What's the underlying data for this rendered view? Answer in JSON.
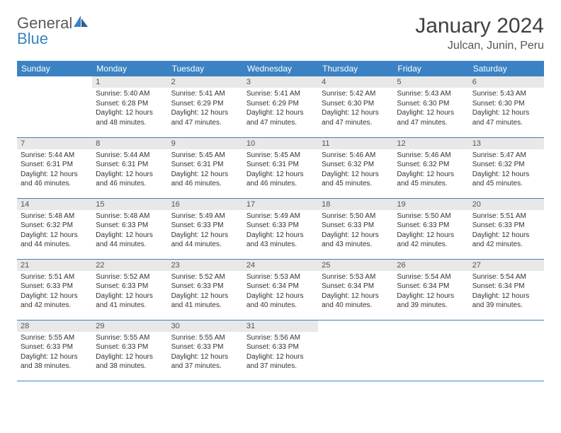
{
  "logo": {
    "general": "General",
    "blue": "Blue"
  },
  "title": "January 2024",
  "location": "Julcan, Junin, Peru",
  "colors": {
    "header_bg": "#3b82c4",
    "header_text": "#ffffff",
    "daynum_bg": "#e8e8e8",
    "border": "#3b82c4",
    "body_text": "#333333",
    "logo_gray": "#5a5a5a",
    "logo_blue": "#3b82c4"
  },
  "weekdays": [
    "Sunday",
    "Monday",
    "Tuesday",
    "Wednesday",
    "Thursday",
    "Friday",
    "Saturday"
  ],
  "weeks": [
    [
      null,
      {
        "n": "1",
        "sr": "Sunrise: 5:40 AM",
        "ss": "Sunset: 6:28 PM",
        "d1": "Daylight: 12 hours",
        "d2": "and 48 minutes."
      },
      {
        "n": "2",
        "sr": "Sunrise: 5:41 AM",
        "ss": "Sunset: 6:29 PM",
        "d1": "Daylight: 12 hours",
        "d2": "and 47 minutes."
      },
      {
        "n": "3",
        "sr": "Sunrise: 5:41 AM",
        "ss": "Sunset: 6:29 PM",
        "d1": "Daylight: 12 hours",
        "d2": "and 47 minutes."
      },
      {
        "n": "4",
        "sr": "Sunrise: 5:42 AM",
        "ss": "Sunset: 6:30 PM",
        "d1": "Daylight: 12 hours",
        "d2": "and 47 minutes."
      },
      {
        "n": "5",
        "sr": "Sunrise: 5:43 AM",
        "ss": "Sunset: 6:30 PM",
        "d1": "Daylight: 12 hours",
        "d2": "and 47 minutes."
      },
      {
        "n": "6",
        "sr": "Sunrise: 5:43 AM",
        "ss": "Sunset: 6:30 PM",
        "d1": "Daylight: 12 hours",
        "d2": "and 47 minutes."
      }
    ],
    [
      {
        "n": "7",
        "sr": "Sunrise: 5:44 AM",
        "ss": "Sunset: 6:31 PM",
        "d1": "Daylight: 12 hours",
        "d2": "and 46 minutes."
      },
      {
        "n": "8",
        "sr": "Sunrise: 5:44 AM",
        "ss": "Sunset: 6:31 PM",
        "d1": "Daylight: 12 hours",
        "d2": "and 46 minutes."
      },
      {
        "n": "9",
        "sr": "Sunrise: 5:45 AM",
        "ss": "Sunset: 6:31 PM",
        "d1": "Daylight: 12 hours",
        "d2": "and 46 minutes."
      },
      {
        "n": "10",
        "sr": "Sunrise: 5:45 AM",
        "ss": "Sunset: 6:31 PM",
        "d1": "Daylight: 12 hours",
        "d2": "and 46 minutes."
      },
      {
        "n": "11",
        "sr": "Sunrise: 5:46 AM",
        "ss": "Sunset: 6:32 PM",
        "d1": "Daylight: 12 hours",
        "d2": "and 45 minutes."
      },
      {
        "n": "12",
        "sr": "Sunrise: 5:46 AM",
        "ss": "Sunset: 6:32 PM",
        "d1": "Daylight: 12 hours",
        "d2": "and 45 minutes."
      },
      {
        "n": "13",
        "sr": "Sunrise: 5:47 AM",
        "ss": "Sunset: 6:32 PM",
        "d1": "Daylight: 12 hours",
        "d2": "and 45 minutes."
      }
    ],
    [
      {
        "n": "14",
        "sr": "Sunrise: 5:48 AM",
        "ss": "Sunset: 6:32 PM",
        "d1": "Daylight: 12 hours",
        "d2": "and 44 minutes."
      },
      {
        "n": "15",
        "sr": "Sunrise: 5:48 AM",
        "ss": "Sunset: 6:33 PM",
        "d1": "Daylight: 12 hours",
        "d2": "and 44 minutes."
      },
      {
        "n": "16",
        "sr": "Sunrise: 5:49 AM",
        "ss": "Sunset: 6:33 PM",
        "d1": "Daylight: 12 hours",
        "d2": "and 44 minutes."
      },
      {
        "n": "17",
        "sr": "Sunrise: 5:49 AM",
        "ss": "Sunset: 6:33 PM",
        "d1": "Daylight: 12 hours",
        "d2": "and 43 minutes."
      },
      {
        "n": "18",
        "sr": "Sunrise: 5:50 AM",
        "ss": "Sunset: 6:33 PM",
        "d1": "Daylight: 12 hours",
        "d2": "and 43 minutes."
      },
      {
        "n": "19",
        "sr": "Sunrise: 5:50 AM",
        "ss": "Sunset: 6:33 PM",
        "d1": "Daylight: 12 hours",
        "d2": "and 42 minutes."
      },
      {
        "n": "20",
        "sr": "Sunrise: 5:51 AM",
        "ss": "Sunset: 6:33 PM",
        "d1": "Daylight: 12 hours",
        "d2": "and 42 minutes."
      }
    ],
    [
      {
        "n": "21",
        "sr": "Sunrise: 5:51 AM",
        "ss": "Sunset: 6:33 PM",
        "d1": "Daylight: 12 hours",
        "d2": "and 42 minutes."
      },
      {
        "n": "22",
        "sr": "Sunrise: 5:52 AM",
        "ss": "Sunset: 6:33 PM",
        "d1": "Daylight: 12 hours",
        "d2": "and 41 minutes."
      },
      {
        "n": "23",
        "sr": "Sunrise: 5:52 AM",
        "ss": "Sunset: 6:33 PM",
        "d1": "Daylight: 12 hours",
        "d2": "and 41 minutes."
      },
      {
        "n": "24",
        "sr": "Sunrise: 5:53 AM",
        "ss": "Sunset: 6:34 PM",
        "d1": "Daylight: 12 hours",
        "d2": "and 40 minutes."
      },
      {
        "n": "25",
        "sr": "Sunrise: 5:53 AM",
        "ss": "Sunset: 6:34 PM",
        "d1": "Daylight: 12 hours",
        "d2": "and 40 minutes."
      },
      {
        "n": "26",
        "sr": "Sunrise: 5:54 AM",
        "ss": "Sunset: 6:34 PM",
        "d1": "Daylight: 12 hours",
        "d2": "and 39 minutes."
      },
      {
        "n": "27",
        "sr": "Sunrise: 5:54 AM",
        "ss": "Sunset: 6:34 PM",
        "d1": "Daylight: 12 hours",
        "d2": "and 39 minutes."
      }
    ],
    [
      {
        "n": "28",
        "sr": "Sunrise: 5:55 AM",
        "ss": "Sunset: 6:33 PM",
        "d1": "Daylight: 12 hours",
        "d2": "and 38 minutes."
      },
      {
        "n": "29",
        "sr": "Sunrise: 5:55 AM",
        "ss": "Sunset: 6:33 PM",
        "d1": "Daylight: 12 hours",
        "d2": "and 38 minutes."
      },
      {
        "n": "30",
        "sr": "Sunrise: 5:55 AM",
        "ss": "Sunset: 6:33 PM",
        "d1": "Daylight: 12 hours",
        "d2": "and 37 minutes."
      },
      {
        "n": "31",
        "sr": "Sunrise: 5:56 AM",
        "ss": "Sunset: 6:33 PM",
        "d1": "Daylight: 12 hours",
        "d2": "and 37 minutes."
      },
      null,
      null,
      null
    ]
  ]
}
